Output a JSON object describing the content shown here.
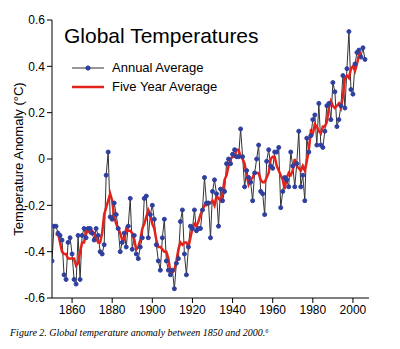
{
  "chart_data": {
    "type": "line",
    "title": "Global Temperatures",
    "x_label": null,
    "y_label": "Temperature Anomaly (°C)",
    "caption": "Figure 2. Global temperature anomaly between 1850 and 2000.⁶",
    "legend": "upper left",
    "grid": false,
    "x": [
      1850,
      1851,
      1852,
      1853,
      1854,
      1855,
      1856,
      1857,
      1858,
      1859,
      1860,
      1861,
      1862,
      1863,
      1864,
      1865,
      1866,
      1867,
      1868,
      1869,
      1870,
      1871,
      1872,
      1873,
      1874,
      1875,
      1876,
      1877,
      1878,
      1879,
      1880,
      1881,
      1882,
      1883,
      1884,
      1885,
      1886,
      1887,
      1888,
      1889,
      1890,
      1891,
      1892,
      1893,
      1894,
      1895,
      1896,
      1897,
      1898,
      1899,
      1900,
      1901,
      1902,
      1903,
      1904,
      1905,
      1906,
      1907,
      1908,
      1909,
      1910,
      1911,
      1912,
      1913,
      1914,
      1915,
      1916,
      1917,
      1918,
      1919,
      1920,
      1921,
      1922,
      1923,
      1924,
      1925,
      1926,
      1927,
      1928,
      1929,
      1930,
      1931,
      1932,
      1933,
      1934,
      1935,
      1936,
      1937,
      1938,
      1939,
      1940,
      1941,
      1942,
      1943,
      1944,
      1945,
      1946,
      1947,
      1948,
      1949,
      1950,
      1951,
      1952,
      1953,
      1954,
      1955,
      1956,
      1957,
      1958,
      1959,
      1960,
      1961,
      1962,
      1963,
      1964,
      1965,
      1966,
      1967,
      1968,
      1969,
      1970,
      1971,
      1972,
      1973,
      1974,
      1975,
      1976,
      1977,
      1978,
      1979,
      1980,
      1981,
      1982,
      1983,
      1984,
      1985,
      1986,
      1987,
      1988,
      1989,
      1990,
      1991,
      1992,
      1993,
      1994,
      1995,
      1996,
      1997,
      1998,
      1999,
      2000,
      2001,
      2002,
      2003,
      2004,
      2005,
      2006
    ],
    "series": [
      {
        "name": "Annual Average",
        "color": "#2f3fa0",
        "marker": "circle",
        "line_style": "solid",
        "values": [
          -0.44,
          -0.29,
          -0.29,
          -0.32,
          -0.33,
          -0.35,
          -0.5,
          -0.52,
          -0.36,
          -0.34,
          -0.41,
          -0.52,
          -0.54,
          -0.33,
          -0.52,
          -0.33,
          -0.3,
          -0.34,
          -0.3,
          -0.3,
          -0.32,
          -0.35,
          -0.3,
          -0.33,
          -0.4,
          -0.41,
          -0.37,
          -0.07,
          0.03,
          -0.25,
          -0.26,
          -0.19,
          -0.24,
          -0.3,
          -0.4,
          -0.36,
          -0.32,
          -0.38,
          -0.29,
          -0.17,
          -0.39,
          -0.33,
          -0.41,
          -0.43,
          -0.38,
          -0.34,
          -0.17,
          -0.16,
          -0.34,
          -0.24,
          -0.2,
          -0.26,
          -0.37,
          -0.44,
          -0.48,
          -0.34,
          -0.26,
          -0.44,
          -0.48,
          -0.5,
          -0.48,
          -0.56,
          -0.45,
          -0.43,
          -0.27,
          -0.22,
          -0.41,
          -0.5,
          -0.38,
          -0.29,
          -0.3,
          -0.22,
          -0.31,
          -0.3,
          -0.3,
          -0.22,
          -0.08,
          -0.19,
          -0.19,
          -0.34,
          -0.14,
          -0.09,
          -0.15,
          -0.29,
          -0.13,
          -0.18,
          -0.14,
          -0.02,
          0,
          -0.02,
          0.02,
          0.04,
          0.01,
          0.01,
          0.13,
          0.01,
          -0.12,
          -0.05,
          -0.08,
          -0.1,
          -0.18,
          -0.06,
          0,
          0.06,
          -0.14,
          -0.15,
          -0.24,
          -0.01,
          0.04,
          -0.03,
          -0.04,
          0.03,
          0.03,
          0.05,
          -0.21,
          -0.14,
          -0.08,
          -0.09,
          -0.12,
          0.03,
          -0.03,
          -0.12,
          -0.02,
          0.12,
          -0.12,
          -0.07,
          -0.18,
          0.09,
          0.03,
          0.1,
          0.17,
          0.19,
          0.06,
          0.24,
          0.06,
          0.05,
          0.12,
          0.23,
          0.24,
          0.17,
          0.33,
          0.29,
          0.14,
          0.17,
          0.23,
          0.36,
          0.22,
          0.39,
          0.55,
          0.3,
          0.28,
          0.41,
          0.46,
          0.47,
          0.44,
          0.48,
          0.43
        ]
      },
      {
        "name": "Five Year Average",
        "color": "#e3231b",
        "marker": "none",
        "line_style": "solid",
        "values": [
          null,
          null,
          -0.33,
          -0.32,
          -0.36,
          -0.4,
          -0.41,
          -0.41,
          -0.43,
          -0.43,
          -0.43,
          -0.43,
          -0.46,
          -0.45,
          -0.4,
          -0.36,
          -0.36,
          -0.31,
          -0.31,
          -0.32,
          -0.31,
          -0.32,
          -0.34,
          -0.36,
          -0.36,
          -0.32,
          -0.24,
          -0.21,
          -0.18,
          -0.15,
          -0.18,
          -0.25,
          -0.28,
          -0.3,
          -0.32,
          -0.35,
          -0.35,
          -0.3,
          -0.31,
          -0.31,
          -0.32,
          -0.35,
          -0.39,
          -0.38,
          -0.35,
          -0.3,
          -0.28,
          -0.25,
          -0.22,
          -0.24,
          -0.28,
          -0.3,
          -0.35,
          -0.38,
          -0.38,
          -0.39,
          -0.4,
          -0.4,
          -0.43,
          -0.49,
          -0.49,
          -0.48,
          -0.44,
          -0.39,
          -0.36,
          -0.37,
          -0.36,
          -0.36,
          -0.38,
          -0.34,
          -0.3,
          -0.28,
          -0.29,
          -0.27,
          -0.24,
          -0.22,
          -0.2,
          -0.2,
          -0.19,
          -0.19,
          -0.18,
          -0.2,
          -0.16,
          -0.17,
          -0.18,
          -0.15,
          -0.09,
          -0.07,
          -0.03,
          0,
          0.01,
          0.01,
          0.04,
          0.04,
          0.01,
          0,
          -0.02,
          -0.07,
          -0.11,
          -0.09,
          -0.08,
          -0.06,
          -0.06,
          -0.06,
          -0.09,
          -0.1,
          -0.1,
          -0.08,
          -0.06,
          0,
          0.01,
          0.01,
          -0.03,
          -0.05,
          -0.07,
          -0.09,
          -0.13,
          -0.08,
          -0.06,
          -0.07,
          -0.05,
          0,
          -0.03,
          -0.04,
          -0.05,
          -0.03,
          -0.05,
          -0.01,
          0.04,
          0.12,
          0.11,
          0.15,
          0.14,
          0.12,
          0.11,
          0.14,
          0.14,
          0.16,
          0.22,
          0.25,
          0.23,
          0.22,
          0.23,
          0.24,
          0.22,
          0.27,
          0.35,
          0.36,
          0.35,
          0.39,
          0.4,
          0.38,
          0.41,
          0.45,
          0.46,
          null,
          null
        ]
      }
    ],
    "xlim": [
      1850,
      2008
    ],
    "xticks": [
      1860,
      1880,
      1900,
      1920,
      1940,
      1960,
      1980,
      2000
    ],
    "ylim": [
      -0.6,
      0.6
    ],
    "yticks": [
      -0.6,
      -0.4,
      -0.2,
      0,
      0.2,
      0.4,
      0.6
    ]
  }
}
